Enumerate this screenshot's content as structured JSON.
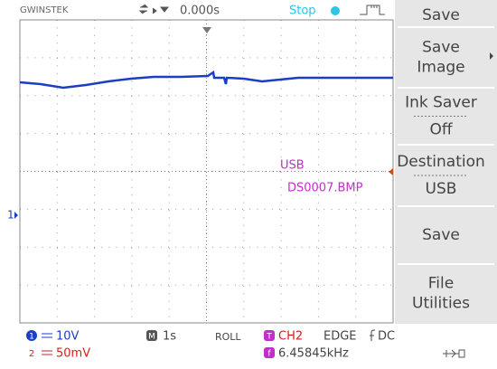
{
  "header": {
    "brand": "GWINSTEK",
    "timebase_offset": "0.000s",
    "status": "Stop"
  },
  "menu": [
    {
      "lines": [
        "Save"
      ]
    },
    {
      "lines": [
        "Save",
        "Image"
      ]
    },
    {
      "lines": [
        "Ink Saver"
      ],
      "value": "Off"
    },
    {
      "lines": [
        "Destination"
      ],
      "value": "USB"
    },
    {
      "lines": [
        "Save"
      ]
    },
    {
      "lines": [
        "File",
        "Utilities"
      ]
    }
  ],
  "screen": {
    "message_lines": [
      "USB",
      "DS0007.BMP"
    ],
    "channel_marker": "1"
  },
  "status_bar": {
    "ch1_badge": "1",
    "ch1_scale": "10V",
    "ch2_badge": "2",
    "ch2_scale": "50mV",
    "time_badge": "M",
    "time_scale": "1s",
    "mode": "ROLL",
    "trigger_badge": "T",
    "trigger_source": "CH2",
    "trigger_type": "EDGE",
    "coupling": "DC",
    "freq_badge": "f",
    "frequency": "6.45845kHz"
  }
}
